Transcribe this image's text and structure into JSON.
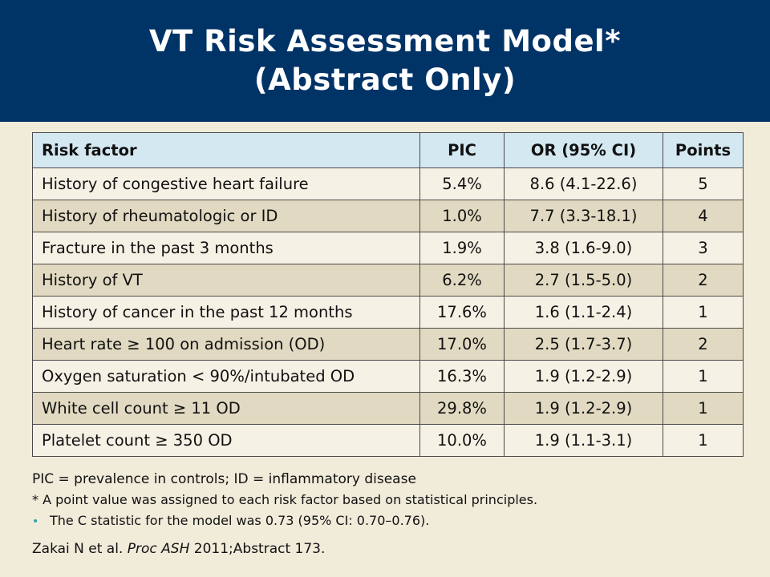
{
  "slide": {
    "title_line1": "VT Risk Assessment Model*",
    "title_line2": "(Abstract Only)"
  },
  "colors": {
    "title_bg": "#003366",
    "header_bg": "#d4e8f2",
    "row_light": "#f5f1e5",
    "row_dark": "#e1d9c1",
    "page_bg": "#f1ebda",
    "bullet": "#2aa3a8"
  },
  "table": {
    "headers": [
      "Risk factor",
      "PIC",
      "OR (95% CI)",
      "Points"
    ],
    "rows": [
      [
        "History of congestive heart failure",
        "5.4%",
        "8.6 (4.1-22.6)",
        "5"
      ],
      [
        "History of rheumatologic or ID",
        "1.0%",
        "7.7 (3.3-18.1)",
        "4"
      ],
      [
        "Fracture in the past 3 months",
        "1.9%",
        "3.8 (1.6-9.0)",
        "3"
      ],
      [
        "History of VT",
        "6.2%",
        "2.7 (1.5-5.0)",
        "2"
      ],
      [
        "History of cancer in the past 12 months",
        "17.6%",
        "1.6 (1.1-2.4)",
        "1"
      ],
      [
        "Heart rate ≥ 100 on admission (OD)",
        "17.0%",
        "2.5 (1.7-3.7)",
        "2"
      ],
      [
        "Oxygen saturation < 90%/intubated OD",
        "16.3%",
        "1.9 (1.2-2.9)",
        "1"
      ],
      [
        "White cell count ≥ 11 OD",
        "29.8%",
        "1.9 (1.2-2.9)",
        "1"
      ],
      [
        "Platelet count ≥ 350 OD",
        "10.0%",
        "1.9 (1.1-3.1)",
        "1"
      ]
    ]
  },
  "notes": {
    "abbreviations": "PIC = prevalence in controls; ID = inflammatory disease",
    "asterisk_note": "* A point value was assigned to each risk factor based on statistical principles.",
    "bullet_glyph": "•",
    "bullet_note": "The C statistic for the model was 0.73 (95% CI: 0.70–0.76).",
    "citation_authors": "Zakai N et al. ",
    "citation_journal": "Proc ASH",
    "citation_rest": " 2011;Abstract 173."
  }
}
